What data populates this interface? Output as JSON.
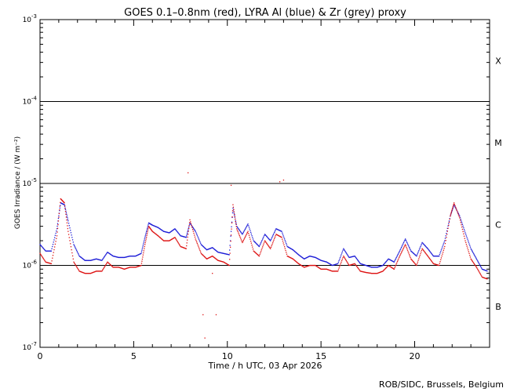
{
  "credit": "ROB/SIDC, Brussels, Belgium",
  "chart_data": {
    "type": "scatter",
    "title": "GOES 0.1–0.8nm (red), LYRA Al (blue) & Zr (grey) proxy",
    "xlabel": "Time / h UTC, 03 Apr 2026",
    "ylabel": "GOES Irradiance / (W m⁻²)",
    "xlim": [
      0,
      24
    ],
    "ylim": [
      1e-07,
      0.001
    ],
    "y_scale": "log",
    "x_ticks": [
      0,
      5,
      10,
      15,
      20
    ],
    "x_tick_labels": [
      "0",
      "5",
      "10",
      "15",
      "20"
    ],
    "y_ticks": [
      1e-07,
      1e-06,
      1e-05,
      0.0001,
      0.001
    ],
    "y_tick_labels": [
      {
        "base": "10",
        "exp": "-7"
      },
      {
        "base": "10",
        "exp": "-6"
      },
      {
        "base": "10",
        "exp": "-5"
      },
      {
        "base": "10",
        "exp": "-4"
      },
      {
        "base": "10",
        "exp": "-3"
      }
    ],
    "flare_class_lines": [
      1e-06,
      1e-05,
      0.0001
    ],
    "flare_classes": [
      {
        "label": "B",
        "range": [
          1e-07,
          1e-06
        ]
      },
      {
        "label": "C",
        "range": [
          1e-06,
          1e-05
        ]
      },
      {
        "label": "M",
        "range": [
          1e-05,
          0.0001
        ]
      },
      {
        "label": "X",
        "range": [
          0.0001,
          0.001
        ]
      }
    ],
    "series": [
      {
        "color": "#1a1ad6",
        "x": [
          0,
          0.3,
          0.6,
          0.9,
          1.1,
          1.3,
          1.5,
          1.8,
          2.1,
          2.4,
          2.7,
          3.0,
          3.3,
          3.6,
          3.9,
          4.2,
          4.5,
          4.8,
          5.1,
          5.4,
          5.6,
          5.8,
          6.0,
          6.3,
          6.6,
          6.9,
          7.2,
          7.5,
          7.8,
          8.0,
          8.3,
          8.6,
          8.9,
          9.2,
          9.5,
          9.8,
          10.1,
          10.3,
          10.5,
          10.8,
          11.1,
          11.4,
          11.7,
          12.0,
          12.3,
          12.6,
          12.9,
          13.2,
          13.5,
          13.8,
          14.1,
          14.4,
          14.7,
          15.0,
          15.3,
          15.6,
          15.9,
          16.2,
          16.5,
          16.8,
          17.1,
          17.4,
          17.7,
          18.0,
          18.3,
          18.6,
          18.9,
          19.2,
          19.5,
          19.8,
          20.1,
          20.4,
          20.7,
          21.0,
          21.3,
          21.6,
          21.9,
          22.1,
          22.4,
          22.7,
          23.0,
          23.3,
          23.6,
          23.9
        ],
        "y": [
          1.8e-06,
          1.5e-06,
          1.5e-06,
          2.8e-06,
          5.8e-06,
          5.5e-06,
          3.5e-06,
          1.8e-06,
          1.3e-06,
          1.15e-06,
          1.15e-06,
          1.2e-06,
          1.15e-06,
          1.45e-06,
          1.3e-06,
          1.25e-06,
          1.25e-06,
          1.3e-06,
          1.3e-06,
          1.4e-06,
          2.2e-06,
          3.3e-06,
          3.1e-06,
          2.9e-06,
          2.6e-06,
          2.5e-06,
          2.8e-06,
          2.3e-06,
          2.2e-06,
          3.3e-06,
          2.6e-06,
          1.8e-06,
          1.55e-06,
          1.65e-06,
          1.45e-06,
          1.4e-06,
          1.35e-06,
          5e-06,
          3e-06,
          2.4e-06,
          3.2e-06,
          2e-06,
          1.7e-06,
          2.4e-06,
          2e-06,
          2.8e-06,
          2.6e-06,
          1.7e-06,
          1.55e-06,
          1.35e-06,
          1.2e-06,
          1.3e-06,
          1.25e-06,
          1.15e-06,
          1.1e-06,
          1e-06,
          1.05e-06,
          1.6e-06,
          1.25e-06,
          1.3e-06,
          1.05e-06,
          1e-06,
          9.5e-07,
          9.5e-07,
          1e-06,
          1.2e-06,
          1.1e-06,
          1.5e-06,
          2.1e-06,
          1.5e-06,
          1.3e-06,
          1.9e-06,
          1.6e-06,
          1.3e-06,
          1.3e-06,
          2e-06,
          4e-06,
          5.5e-06,
          4e-06,
          2.5e-06,
          1.6e-06,
          1.2e-06,
          9e-07,
          8.5e-07
        ]
      },
      {
        "color": "#dd1111",
        "x": [
          0,
          0.3,
          0.6,
          0.9,
          1.1,
          1.3,
          1.5,
          1.8,
          2.1,
          2.4,
          2.7,
          3.0,
          3.3,
          3.6,
          3.9,
          4.2,
          4.5,
          4.8,
          5.1,
          5.4,
          5.6,
          5.8,
          6.0,
          6.3,
          6.6,
          6.9,
          7.2,
          7.5,
          7.8,
          8.0,
          8.3,
          8.6,
          8.9,
          9.2,
          9.5,
          9.8,
          10.1,
          10.3,
          10.5,
          10.8,
          11.1,
          11.4,
          11.7,
          12.0,
          12.3,
          12.6,
          12.9,
          13.2,
          13.5,
          13.8,
          14.1,
          14.4,
          14.7,
          15.0,
          15.3,
          15.6,
          15.9,
          16.2,
          16.5,
          16.8,
          17.1,
          17.4,
          17.7,
          18.0,
          18.3,
          18.6,
          18.9,
          19.2,
          19.5,
          19.8,
          20.1,
          20.4,
          20.7,
          21.0,
          21.3,
          21.6,
          21.9,
          22.1,
          22.4,
          22.7,
          23.0,
          23.3,
          23.6,
          23.9
        ],
        "y": [
          1.4e-06,
          1.1e-06,
          1.05e-06,
          2.3e-06,
          6.5e-06,
          5.8e-06,
          2.6e-06,
          1.1e-06,
          8.5e-07,
          8e-07,
          8e-07,
          8.5e-07,
          8.5e-07,
          1.1e-06,
          9.5e-07,
          9.5e-07,
          9e-07,
          9.5e-07,
          9.5e-07,
          1e-06,
          1.8e-06,
          3e-06,
          2.6e-06,
          2.3e-06,
          2e-06,
          2e-06,
          2.2e-06,
          1.7e-06,
          1.6e-06,
          3.6e-06,
          2.1e-06,
          1.4e-06,
          1.2e-06,
          1.3e-06,
          1.15e-06,
          1.1e-06,
          1e-06,
          5.5e-06,
          2.8e-06,
          1.9e-06,
          2.6e-06,
          1.5e-06,
          1.3e-06,
          2e-06,
          1.6e-06,
          2.4e-06,
          2.2e-06,
          1.3e-06,
          1.2e-06,
          1.05e-06,
          9.5e-07,
          1e-06,
          1e-06,
          9e-07,
          9e-07,
          8.5e-07,
          8.5e-07,
          1.3e-06,
          1e-06,
          1.05e-06,
          8.5e-07,
          8.2e-07,
          8e-07,
          8e-07,
          8.5e-07,
          1e-06,
          9e-07,
          1.3e-06,
          1.8e-06,
          1.2e-06,
          1e-06,
          1.6e-06,
          1.3e-06,
          1.05e-06,
          1e-06,
          1.7e-06,
          4e-06,
          5.8e-06,
          3.8e-06,
          2e-06,
          1.2e-06,
          9.5e-07,
          7.2e-07,
          6.8e-07
        ]
      }
    ],
    "red_spikes": [
      {
        "x": 7.9,
        "y": 1.35e-05
      },
      {
        "x": 12.8,
        "y": 1.05e-05
      },
      {
        "x": 13.0,
        "y": 1.1e-05
      },
      {
        "x": 10.2,
        "y": 9.5e-06
      },
      {
        "x": 8.7,
        "y": 2.5e-07
      },
      {
        "x": 9.4,
        "y": 2.5e-07
      },
      {
        "x": 8.8,
        "y": 1.3e-07
      },
      {
        "x": 9.2,
        "y": 8e-07
      }
    ]
  }
}
